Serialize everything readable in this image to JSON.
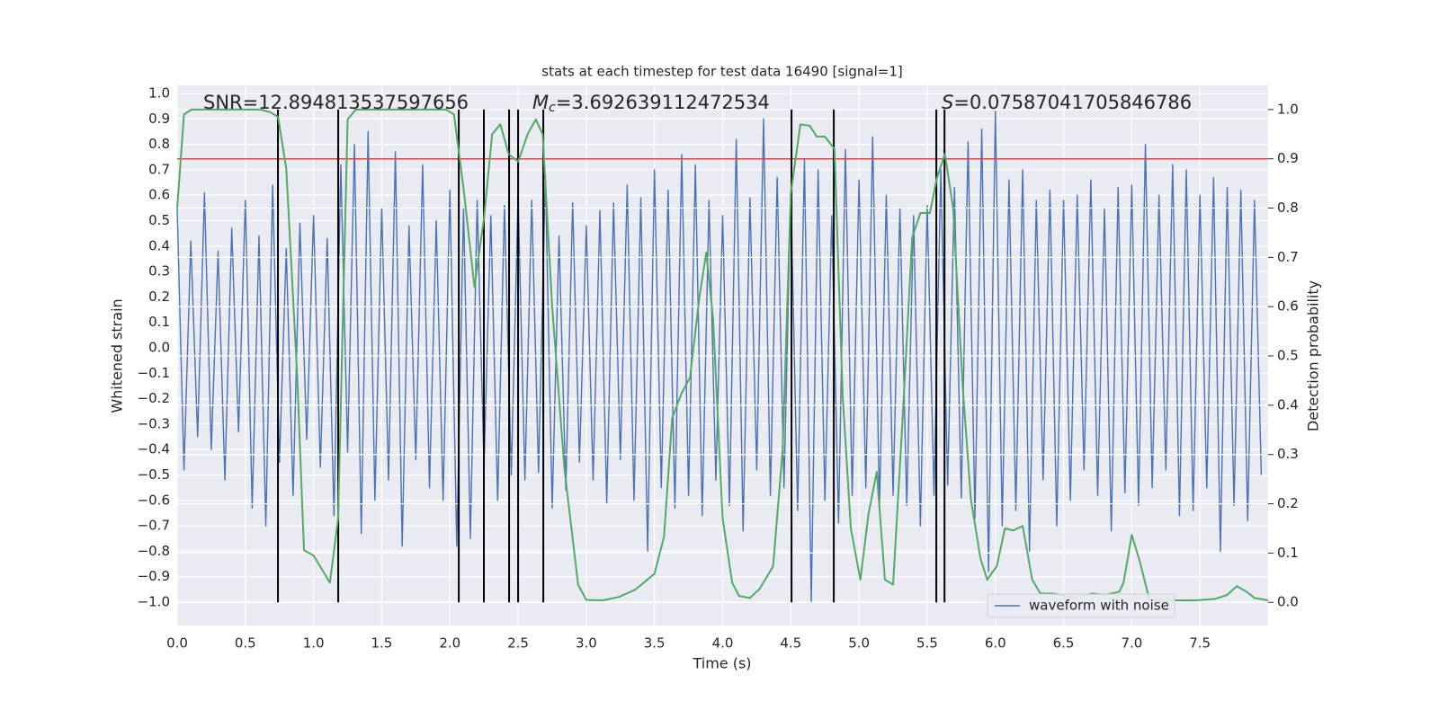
{
  "chart_data": {
    "type": "line",
    "title": "stats at each timestep for test data 16490 [signal=1]",
    "xlabel": "Time (s)",
    "ylabel": "Whitened strain",
    "y2label": "Detection probability",
    "annotations": [
      {
        "text": "SNR=12.894813537597656"
      },
      {
        "symbol": "M",
        "subscript": "c",
        "text": "=3.692639112472534"
      },
      {
        "symbol": "S",
        "text": "=0.07587041705846786"
      }
    ],
    "xlim": [
      0,
      8
    ],
    "ylim": [
      -1.092,
      1.032
    ],
    "y2lim": [
      -0.047,
      1.049
    ],
    "xticks": [
      {
        "value": 0,
        "label": "0.0"
      },
      {
        "value": 0.5,
        "label": "0.5"
      },
      {
        "value": 1,
        "label": "1.0"
      },
      {
        "value": 1.5,
        "label": "1.5"
      },
      {
        "value": 2,
        "label": "2.0"
      },
      {
        "value": 2.5,
        "label": "2.5"
      },
      {
        "value": 3,
        "label": "3.0"
      },
      {
        "value": 3.5,
        "label": "3.5"
      },
      {
        "value": 4,
        "label": "4.0"
      },
      {
        "value": 4.5,
        "label": "4.5"
      },
      {
        "value": 5,
        "label": "5.0"
      },
      {
        "value": 5.5,
        "label": "5.5"
      },
      {
        "value": 6,
        "label": "6.0"
      },
      {
        "value": 6.5,
        "label": "6.5"
      },
      {
        "value": 7,
        "label": "7.0"
      },
      {
        "value": 7.5,
        "label": "7.5"
      }
    ],
    "yticks": [
      {
        "value": -1,
        "label": "−1.0"
      },
      {
        "value": -0.9,
        "label": "−0.9"
      },
      {
        "value": -0.8,
        "label": "−0.8"
      },
      {
        "value": -0.7,
        "label": "−0.7"
      },
      {
        "value": -0.6,
        "label": "−0.6"
      },
      {
        "value": -0.5,
        "label": "−0.5"
      },
      {
        "value": -0.4,
        "label": "−0.4"
      },
      {
        "value": -0.3,
        "label": "−0.3"
      },
      {
        "value": -0.2,
        "label": "−0.2"
      },
      {
        "value": -0.1,
        "label": "−0.1"
      },
      {
        "value": 0,
        "label": "0.0"
      },
      {
        "value": 0.1,
        "label": "0.1"
      },
      {
        "value": 0.2,
        "label": "0.2"
      },
      {
        "value": 0.3,
        "label": "0.3"
      },
      {
        "value": 0.4,
        "label": "0.4"
      },
      {
        "value": 0.5,
        "label": "0.5"
      },
      {
        "value": 0.6,
        "label": "0.6"
      },
      {
        "value": 0.7,
        "label": "0.7"
      },
      {
        "value": 0.8,
        "label": "0.8"
      },
      {
        "value": 0.9,
        "label": "0.9"
      },
      {
        "value": 1,
        "label": "1.0"
      }
    ],
    "y2ticks": [
      {
        "value": 0,
        "label": "0.0"
      },
      {
        "value": 0.1,
        "label": "0.1"
      },
      {
        "value": 0.2,
        "label": "0.2"
      },
      {
        "value": 0.3,
        "label": "0.3"
      },
      {
        "value": 0.4,
        "label": "0.4"
      },
      {
        "value": 0.5,
        "label": "0.5"
      },
      {
        "value": 0.6,
        "label": "0.6"
      },
      {
        "value": 0.7,
        "label": "0.7"
      },
      {
        "value": 0.8,
        "label": "0.8"
      },
      {
        "value": 0.9,
        "label": "0.9"
      },
      {
        "value": 1,
        "label": "1.0"
      }
    ],
    "grid": true,
    "legend": "lower right",
    "threshold": {
      "value": 0.9,
      "axis": "y2",
      "color": "#c44e52"
    },
    "vlines": {
      "x": [
        0.739,
        1.181,
        2.065,
        2.249,
        2.434,
        2.5,
        2.685,
        4.505,
        4.815,
        5.567,
        5.627
      ],
      "y2": [
        0,
        1
      ],
      "color": "#000000"
    },
    "series": [
      {
        "name": "waveform with noise",
        "color": "#4c72b0",
        "axis": "y",
        "x": [
          0,
          0.05,
          0.1,
          0.15,
          0.2,
          0.25,
          0.3,
          0.35,
          0.4,
          0.45,
          0.5,
          0.55,
          0.6,
          0.65,
          0.7,
          0.75,
          0.8,
          0.85,
          0.9,
          0.95,
          1,
          1.05,
          1.1,
          1.15,
          1.2,
          1.25,
          1.3,
          1.35,
          1.4,
          1.45,
          1.5,
          1.55,
          1.6,
          1.65,
          1.7,
          1.75,
          1.8,
          1.85,
          1.9,
          1.95,
          2,
          2.05,
          2.1,
          2.15,
          2.2,
          2.25,
          2.3,
          2.35,
          2.4,
          2.45,
          2.5,
          2.55,
          2.6,
          2.65,
          2.7,
          2.75,
          2.8,
          2.85,
          2.9,
          2.95,
          3,
          3.05,
          3.1,
          3.15,
          3.2,
          3.25,
          3.3,
          3.35,
          3.4,
          3.45,
          3.5,
          3.55,
          3.6,
          3.65,
          3.7,
          3.75,
          3.8,
          3.85,
          3.9,
          3.95,
          4,
          4.05,
          4.1,
          4.15,
          4.2,
          4.25,
          4.3,
          4.35,
          4.4,
          4.45,
          4.5,
          4.55,
          4.6,
          4.65,
          4.7,
          4.75,
          4.8,
          4.85,
          4.9,
          4.95,
          5,
          5.05,
          5.1,
          5.15,
          5.2,
          5.25,
          5.3,
          5.35,
          5.4,
          5.45,
          5.5,
          5.55,
          5.6,
          5.65,
          5.7,
          5.75,
          5.8,
          5.85,
          5.9,
          5.95,
          6,
          6.05,
          6.1,
          6.15,
          6.2,
          6.25,
          6.3,
          6.35,
          6.4,
          6.45,
          6.5,
          6.55,
          6.6,
          6.65,
          6.7,
          6.75,
          6.8,
          6.85,
          6.9,
          6.95,
          7,
          7.05,
          7.1,
          7.15,
          7.2,
          7.25,
          7.3,
          7.35,
          7.4,
          7.45,
          7.5,
          7.55,
          7.6,
          7.65,
          7.7,
          7.75,
          7.8,
          7.85,
          7.9,
          7.95
        ],
        "values": [
          0.55,
          -0.48,
          0.42,
          -0.35,
          0.61,
          -0.4,
          0.38,
          -0.52,
          0.47,
          -0.33,
          0.58,
          -0.63,
          0.44,
          -0.7,
          0.64,
          -0.45,
          0.39,
          -0.58,
          0.49,
          -0.36,
          0.52,
          -0.47,
          0.43,
          -0.66,
          0.72,
          -0.41,
          0.8,
          -0.73,
          0.85,
          -0.6,
          0.55,
          -0.52,
          0.77,
          -0.78,
          0.48,
          -0.44,
          0.72,
          -0.55,
          0.5,
          -0.6,
          0.62,
          -0.78,
          0.55,
          -0.75,
          0.58,
          -0.47,
          0.52,
          -0.6,
          0.56,
          -0.5,
          0.6,
          -0.52,
          0.58,
          -0.49,
          0.68,
          -0.63,
          0.44,
          -0.56,
          0.57,
          -0.45,
          0.48,
          -0.52,
          0.54,
          -0.61,
          0.57,
          -0.44,
          0.64,
          -0.6,
          0.59,
          -0.8,
          0.7,
          -0.55,
          0.62,
          -0.63,
          0.76,
          -0.58,
          0.72,
          -0.66,
          0.58,
          -0.52,
          0.52,
          -0.62,
          0.82,
          -0.72,
          0.59,
          -0.48,
          0.9,
          -0.58,
          0.67,
          -0.55,
          0.62,
          -0.64,
          0.74,
          -1.0,
          0.7,
          -0.6,
          0.52,
          -0.69,
          0.78,
          -0.58,
          0.66,
          -0.55,
          0.83,
          -0.63,
          0.6,
          -0.58,
          0.55,
          -0.62,
          0.52,
          -0.7,
          0.56,
          -0.58,
          0.7,
          -0.54,
          0.63,
          -0.59,
          0.81,
          -0.67,
          0.86,
          -0.88,
          0.93,
          -0.7,
          0.66,
          -0.64,
          0.7,
          -0.8,
          0.58,
          -0.52,
          0.62,
          -0.7,
          0.58,
          -0.6,
          0.6,
          -0.48,
          0.66,
          -0.58,
          0.55,
          -0.72,
          0.63,
          -0.57,
          0.64,
          -0.62,
          0.8,
          -0.55,
          0.6,
          -0.48,
          0.72,
          -0.66,
          0.7,
          -0.64,
          0.6,
          -0.55,
          0.67,
          -0.8,
          0.63,
          -0.62,
          0.62,
          -0.68,
          0.58,
          -0.5
        ]
      },
      {
        "color": "#55a868",
        "axis": "y2",
        "x": [
          0,
          0.05,
          0.106,
          0.61,
          0.68,
          0.74,
          0.8,
          0.88,
          0.93,
          1.0,
          1.12,
          1.18,
          1.25,
          1.31,
          1.97,
          2.03,
          2.1,
          2.18,
          2.25,
          2.31,
          2.37,
          2.43,
          2.5,
          2.57,
          2.63,
          2.68,
          2.75,
          2.84,
          2.94,
          3.0,
          3.12,
          3.24,
          3.36,
          3.5,
          3.57,
          3.63,
          3.7,
          3.76,
          3.83,
          3.88,
          3.93,
          4.0,
          4.07,
          4.12,
          4.2,
          4.27,
          4.37,
          4.44,
          4.5,
          4.57,
          4.64,
          4.69,
          4.75,
          4.82,
          4.88,
          4.94,
          5.01,
          5.07,
          5.13,
          5.19,
          5.25,
          5.32,
          5.39,
          5.45,
          5.52,
          5.57,
          5.63,
          5.69,
          5.76,
          5.82,
          5.89,
          5.94,
          6.01,
          6.07,
          6.13,
          6.2,
          6.27,
          6.33,
          6.42,
          6.52,
          6.58,
          6.71,
          6.81,
          6.91,
          6.94,
          7.0,
          7.06,
          7.13,
          7.21,
          7.34,
          7.47,
          7.61,
          7.7,
          7.77,
          7.84,
          7.9,
          8.0
        ],
        "values": [
          0.8,
          0.99,
          1.0,
          1.0,
          0.995,
          0.985,
          0.88,
          0.46,
          0.106,
          0.095,
          0.04,
          0.17,
          0.98,
          1.0,
          1.0,
          0.99,
          0.84,
          0.64,
          0.78,
          0.95,
          0.97,
          0.91,
          0.894,
          0.95,
          0.98,
          0.95,
          0.6,
          0.27,
          0.036,
          0.005,
          0.004,
          0.011,
          0.026,
          0.058,
          0.133,
          0.374,
          0.425,
          0.456,
          0.62,
          0.71,
          0.575,
          0.17,
          0.04,
          0.013,
          0.009,
          0.027,
          0.073,
          0.31,
          0.83,
          0.97,
          0.967,
          0.945,
          0.945,
          0.92,
          0.42,
          0.15,
          0.046,
          0.18,
          0.265,
          0.046,
          0.036,
          0.374,
          0.74,
          0.79,
          0.79,
          0.86,
          0.91,
          0.8,
          0.44,
          0.21,
          0.09,
          0.046,
          0.073,
          0.15,
          0.146,
          0.155,
          0.046,
          0.018,
          0.018,
          0.013,
          0.009,
          0.018,
          0.015,
          0.022,
          0.04,
          0.137,
          0.082,
          0.005,
          0.004,
          0.004,
          0.004,
          0.007,
          0.015,
          0.033,
          0.022,
          0.009,
          0.004
        ]
      }
    ]
  }
}
